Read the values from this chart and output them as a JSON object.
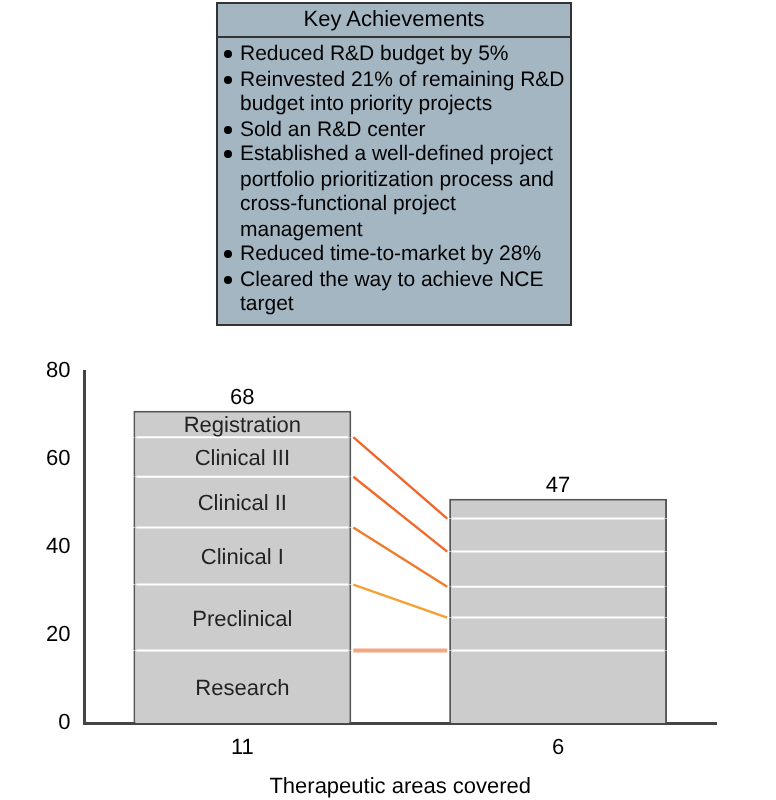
{
  "chart_data": {
    "type": "bar",
    "stacked": true,
    "categories": [
      "11",
      "6"
    ],
    "xlabel": "Therapeutic areas covered",
    "series": [
      {
        "name": "Research",
        "color": "#cccccc",
        "values": [
          16.5,
          16.5
        ]
      },
      {
        "name": "Preclinical",
        "color": "#cccccc",
        "values": [
          15,
          7.5
        ]
      },
      {
        "name": "Clinical I",
        "color": "#cccccc",
        "values": [
          13,
          7
        ]
      },
      {
        "name": "Clinical II",
        "color": "#cccccc",
        "values": [
          11.5,
          8
        ]
      },
      {
        "name": "Clinical III",
        "color": "#cccccc",
        "values": [
          9,
          7.5
        ]
      },
      {
        "name": "Registration",
        "color": "#cccccc",
        "values": [
          6,
          4.5
        ]
      }
    ],
    "ylim": [
      0,
      80
    ],
    "yticks": [
      0,
      20,
      40,
      60,
      80
    ],
    "grid": false,
    "legend": false,
    "annotations": [
      "Key Achievements",
      "Reduced R&D budget by 5%",
      "Reinvested 21% of remaining R&D budget into priority projects",
      "Sold an R&D center",
      "Established a well-defined project portfolio prioritization process and cross-functional project management",
      "Reduced time-to-market by 28%",
      "Cleared the way to achieve NCE target",
      {
        "text": "68",
        "x": "11",
        "y": 71
      },
      {
        "text": "47",
        "x": "6",
        "y": 51
      }
    ]
  }
}
